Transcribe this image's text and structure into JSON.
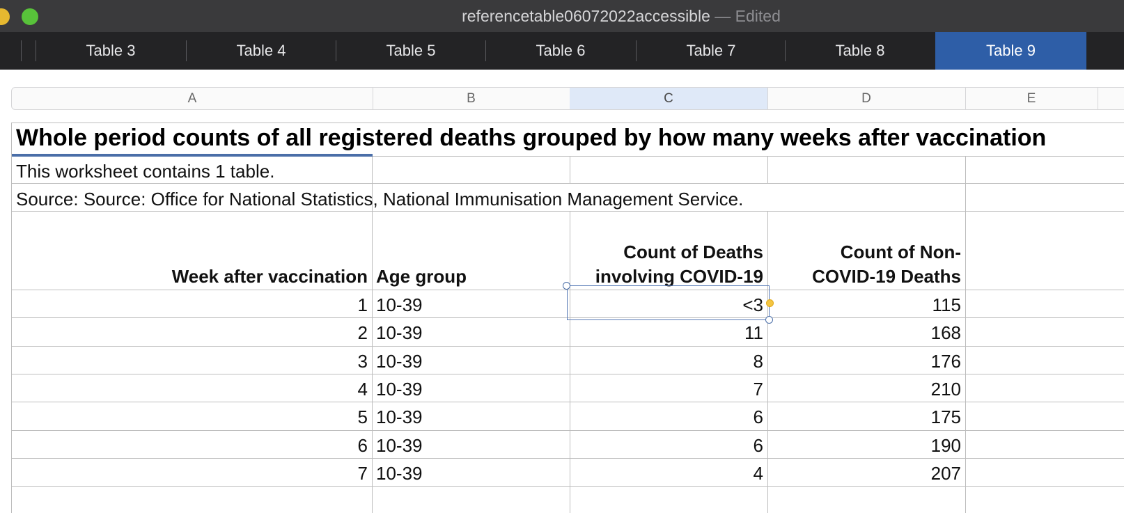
{
  "window": {
    "title": "referencetable06072022accessible",
    "edited": "— Edited"
  },
  "tabs": [
    {
      "label": "Table 3"
    },
    {
      "label": "Table 4"
    },
    {
      "label": "Table 5"
    },
    {
      "label": "Table 6"
    },
    {
      "label": "Table 7"
    },
    {
      "label": "Table 8"
    },
    {
      "label": "Table 9"
    }
  ],
  "active_tab": "Table 9",
  "columns": [
    "A",
    "B",
    "C",
    "D",
    "E"
  ],
  "selected_column": "C",
  "sheet": {
    "title": "Whole period counts of all registered deaths grouped by how many weeks after vaccination",
    "note": "This worksheet contains 1 table.",
    "source": "Source: Source: Office for National Statistics, National Immunisation Management Service.",
    "headers": {
      "week": "Week after vaccination",
      "age": "Age group",
      "covid_line1": "Count of Deaths",
      "covid_line2": "involving COVID-19",
      "noncovid_line1": "Count of Non-",
      "noncovid_line2": "COVID-19 Deaths"
    },
    "rows": [
      {
        "week": "1",
        "age": "10-39",
        "covid": "<3",
        "noncovid": "115"
      },
      {
        "week": "2",
        "age": "10-39",
        "covid": "11",
        "noncovid": "168"
      },
      {
        "week": "3",
        "age": "10-39",
        "covid": "8",
        "noncovid": "176"
      },
      {
        "week": "4",
        "age": "10-39",
        "covid": "7",
        "noncovid": "210"
      },
      {
        "week": "5",
        "age": "10-39",
        "covid": "6",
        "noncovid": "175"
      },
      {
        "week": "6",
        "age": "10-39",
        "covid": "6",
        "noncovid": "190"
      },
      {
        "week": "7",
        "age": "10-39",
        "covid": "4",
        "noncovid": "207"
      }
    ]
  },
  "colors": {
    "titlebar": "#3a3a3c",
    "tabbar": "#232325",
    "active_tab": "#2e5ea7",
    "selection": "#5578b5",
    "selected_column_header": "#dfe9f8"
  }
}
